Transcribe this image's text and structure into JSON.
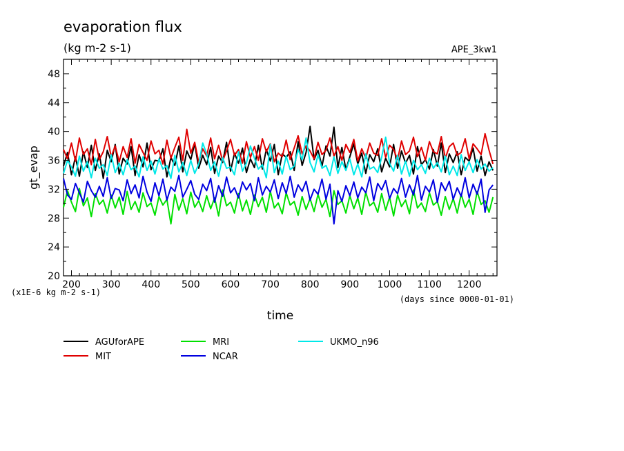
{
  "chart_data": {
    "type": "line",
    "title": "evaporation flux",
    "subtitle": "(kg m-2 s-1)",
    "experiment": "APE_3kw1",
    "xlabel": "time",
    "x_units": "(days since 0000-01-01)",
    "ylabel": "gt_evap",
    "y_units": "(x1E-6 kg m-2 s-1)",
    "xlim": [
      180,
      1270
    ],
    "ylim": [
      20,
      50
    ],
    "xticks": [
      200,
      300,
      400,
      500,
      600,
      700,
      800,
      900,
      1000,
      1100,
      1200
    ],
    "yticks": [
      20,
      24,
      28,
      32,
      36,
      40,
      44,
      48
    ],
    "grid": false,
    "legend_position": "bottom",
    "x": [
      180,
      190,
      200,
      210,
      220,
      230,
      240,
      250,
      260,
      270,
      280,
      290,
      300,
      310,
      320,
      330,
      340,
      350,
      360,
      370,
      380,
      390,
      400,
      410,
      420,
      430,
      440,
      450,
      460,
      470,
      480,
      490,
      500,
      510,
      520,
      530,
      540,
      550,
      560,
      570,
      580,
      590,
      600,
      610,
      620,
      630,
      640,
      650,
      660,
      670,
      680,
      690,
      700,
      710,
      720,
      730,
      740,
      750,
      760,
      770,
      780,
      790,
      800,
      810,
      820,
      830,
      840,
      850,
      860,
      870,
      880,
      890,
      900,
      910,
      920,
      930,
      940,
      950,
      960,
      970,
      980,
      990,
      1000,
      1010,
      1020,
      1030,
      1040,
      1050,
      1060,
      1070,
      1080,
      1090,
      1100,
      1110,
      1120,
      1130,
      1140,
      1150,
      1160,
      1170,
      1180,
      1190,
      1200,
      1210,
      1220,
      1230,
      1240,
      1250,
      1260
    ],
    "series": [
      {
        "name": "AGUforAPE",
        "color": "#000000",
        "values": [
          35.2,
          37.1,
          34.0,
          36.5,
          33.8,
          37.2,
          35.0,
          38.1,
          34.6,
          36.9,
          33.5,
          37.4,
          35.8,
          38.2,
          34.1,
          36.3,
          35.5,
          37.9,
          33.9,
          36.8,
          35.1,
          38.4,
          34.7,
          36.0,
          35.9,
          37.6,
          33.7,
          36.4,
          35.3,
          38.0,
          34.4,
          37.3,
          36.1,
          38.3,
          34.9,
          36.7,
          35.4,
          37.8,
          34.2,
          36.6,
          35.7,
          38.5,
          34.5,
          37.0,
          35.6,
          37.7,
          34.3,
          36.2,
          35.0,
          38.1,
          34.8,
          37.5,
          35.9,
          38.2,
          34.0,
          36.9,
          36.4,
          37.2,
          34.6,
          38.6,
          35.3,
          37.1,
          40.7,
          36.1,
          37.4,
          35.2,
          38.0,
          36.6,
          40.6,
          35.0,
          37.8,
          34.7,
          36.5,
          38.3,
          35.5,
          37.0,
          34.2,
          36.8,
          35.8,
          37.6,
          34.4,
          36.3,
          35.1,
          38.2,
          34.9,
          37.3,
          35.6,
          36.7,
          34.1,
          37.9,
          35.4,
          36.1,
          34.8,
          37.5,
          35.2,
          38.4,
          34.3,
          36.9,
          35.7,
          37.2,
          34.0,
          36.4,
          35.9,
          37.7,
          34.5,
          36.6,
          33.9,
          35.8,
          34.6
        ]
      },
      {
        "name": "MIT",
        "color": "#e00000",
        "values": [
          37.5,
          36.2,
          38.4,
          35.9,
          39.1,
          36.8,
          37.6,
          35.4,
          38.9,
          36.1,
          37.2,
          39.3,
          36.5,
          38.0,
          35.8,
          37.9,
          36.4,
          39.0,
          35.6,
          38.2,
          37.1,
          36.0,
          38.7,
          36.9,
          37.4,
          35.5,
          38.8,
          36.3,
          37.8,
          39.2,
          36.0,
          40.3,
          37.0,
          38.5,
          35.7,
          37.6,
          36.6,
          39.1,
          36.2,
          38.1,
          35.9,
          37.3,
          38.9,
          36.7,
          37.5,
          35.6,
          38.6,
          36.4,
          37.9,
          36.0,
          39.0,
          37.2,
          38.3,
          35.8,
          37.0,
          36.5,
          38.8,
          36.1,
          37.7,
          39.4,
          36.9,
          38.0,
          37.3,
          36.2,
          38.5,
          36.8,
          37.4,
          39.1,
          36.6,
          37.9,
          36.0,
          38.2,
          37.1,
          38.9,
          35.9,
          37.6,
          36.3,
          38.4,
          37.0,
          36.7,
          39.0,
          36.4,
          38.1,
          37.5,
          36.1,
          38.7,
          36.8,
          37.3,
          39.2,
          36.5,
          37.8,
          36.0,
          38.6,
          37.2,
          36.9,
          39.3,
          36.3,
          37.9,
          38.4,
          36.7,
          37.1,
          39.0,
          36.2,
          38.3,
          37.6,
          36.8,
          39.7,
          37.4,
          35.5
        ]
      },
      {
        "name": "MRI",
        "color": "#00e000",
        "values": [
          29.5,
          31.8,
          30.2,
          28.9,
          32.1,
          29.7,
          30.8,
          28.2,
          31.4,
          29.9,
          30.5,
          28.7,
          31.2,
          29.4,
          30.9,
          28.5,
          31.7,
          29.2,
          30.3,
          28.8,
          31.5,
          29.6,
          30.1,
          28.4,
          31.0,
          29.8,
          30.6,
          27.2,
          31.3,
          29.1,
          30.7,
          28.6,
          31.6,
          29.5,
          30.4,
          28.9,
          31.1,
          29.3,
          30.8,
          28.3,
          31.9,
          29.7,
          30.2,
          28.7,
          31.4,
          29.0,
          30.5,
          28.5,
          31.2,
          29.6,
          30.9,
          28.8,
          31.7,
          29.4,
          30.1,
          28.6,
          31.5,
          29.8,
          30.3,
          28.4,
          31.0,
          29.2,
          30.7,
          28.9,
          31.3,
          29.5,
          30.6,
          28.2,
          31.8,
          29.9,
          30.4,
          28.7,
          31.1,
          29.3,
          30.8,
          28.5,
          31.6,
          29.7,
          30.2,
          28.8,
          31.4,
          29.1,
          30.9,
          28.3,
          31.2,
          29.6,
          30.5,
          28.6,
          31.9,
          29.4,
          30.1,
          28.9,
          31.5,
          29.8,
          30.3,
          28.4,
          31.0,
          29.2,
          30.7,
          28.7,
          31.3,
          29.5,
          30.6,
          28.5,
          31.7,
          29.9,
          30.4,
          28.8,
          30.9
        ]
      },
      {
        "name": "NCAR",
        "color": "#0000e0",
        "values": [
          33.5,
          31.2,
          30.6,
          32.8,
          31.5,
          30.2,
          33.1,
          31.8,
          30.9,
          32.4,
          31.0,
          33.6,
          30.7,
          32.1,
          31.9,
          30.4,
          33.3,
          31.4,
          32.6,
          30.8,
          33.8,
          31.6,
          30.3,
          32.9,
          31.1,
          33.4,
          30.5,
          32.3,
          31.7,
          33.9,
          30.9,
          32.0,
          33.2,
          31.3,
          30.6,
          32.7,
          31.8,
          33.5,
          30.2,
          32.5,
          31.0,
          33.7,
          31.5,
          32.2,
          30.8,
          33.0,
          31.9,
          32.8,
          30.4,
          33.6,
          31.2,
          32.4,
          31.6,
          33.3,
          30.7,
          32.9,
          31.4,
          33.8,
          30.9,
          32.6,
          31.7,
          33.1,
          30.5,
          32.0,
          31.3,
          33.4,
          30.6,
          32.7,
          27.2,
          31.8,
          30.3,
          32.5,
          31.1,
          33.0,
          30.8,
          32.3,
          31.5,
          33.7,
          30.4,
          32.8,
          31.9,
          33.2,
          30.7,
          32.1,
          31.4,
          33.5,
          30.9,
          32.6,
          31.2,
          33.9,
          30.5,
          32.4,
          31.6,
          33.3,
          30.2,
          32.9,
          31.8,
          33.1,
          30.6,
          32.2,
          31.0,
          33.6,
          30.8,
          32.7,
          31.3,
          33.4,
          28.8,
          31.9,
          32.6
        ]
      },
      {
        "name": "UKMO_n96",
        "color": "#00e8e8",
        "values": [
          34.2,
          36.0,
          35.1,
          33.8,
          36.6,
          34.5,
          35.8,
          33.6,
          36.3,
          34.9,
          35.4,
          33.9,
          36.8,
          34.3,
          35.6,
          34.0,
          36.1,
          34.7,
          35.2,
          33.7,
          36.5,
          34.6,
          35.9,
          34.1,
          36.2,
          34.8,
          35.3,
          33.5,
          36.7,
          34.4,
          35.7,
          33.9,
          36.0,
          34.2,
          35.5,
          38.4,
          36.9,
          34.6,
          35.8,
          33.8,
          36.4,
          34.9,
          35.1,
          34.0,
          37.2,
          34.5,
          35.6,
          38.0,
          36.3,
          34.8,
          35.4,
          33.6,
          38.2,
          34.3,
          35.9,
          34.1,
          36.6,
          34.7,
          35.2,
          37.5,
          36.1,
          39.1,
          35.7,
          34.4,
          36.8,
          34.9,
          35.3,
          33.9,
          36.5,
          34.2,
          35.8,
          34.6,
          36.2,
          34.0,
          35.5,
          33.7,
          36.9,
          34.8,
          35.1,
          34.3,
          36.4,
          39.2,
          35.6,
          34.5,
          36.7,
          34.1,
          35.9,
          33.8,
          36.0,
          34.7,
          35.4,
          34.2,
          36.3,
          34.9,
          35.7,
          34.4,
          36.6,
          34.0,
          35.2,
          33.9,
          36.8,
          34.6,
          35.8,
          34.3,
          36.1,
          34.8,
          35.5,
          34.5,
          35.0
        ]
      }
    ]
  }
}
